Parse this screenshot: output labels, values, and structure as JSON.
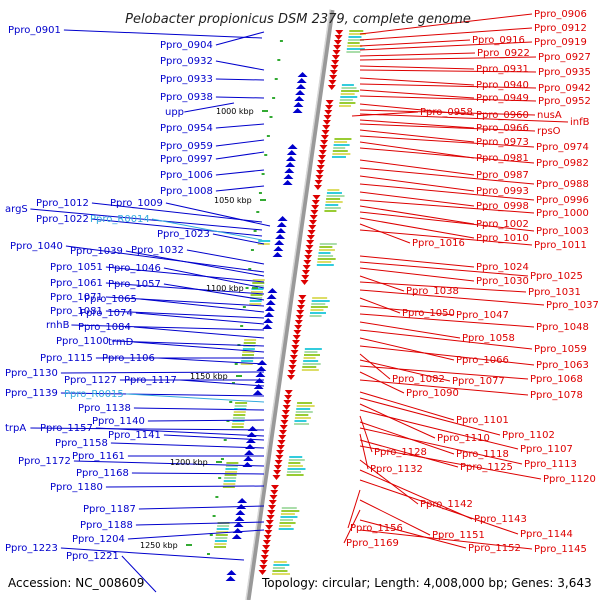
{
  "title": "Pelobacter propionicus DSM 2379, complete genome",
  "footer": {
    "accession": "Accession: NC_008609",
    "topology": "Topology: circular; Length: 4,008,000 bp; Genes: 3,643"
  },
  "colors": {
    "reverse_strand": "#0000cc",
    "forward_strand": "#dd0000",
    "rna": "#33aadd",
    "backbone": "#888888"
  },
  "scale_labels": [
    "1000 kbp",
    "1050 kbp",
    "1100 kbp",
    "1150 kbp",
    "1200 kbp",
    "1250 kbp"
  ],
  "left_labels": [
    {
      "text": "Ppro_0901",
      "kind": "gene"
    },
    {
      "text": "Ppro_0904",
      "kind": "gene"
    },
    {
      "text": "Ppro_0932",
      "kind": "gene"
    },
    {
      "text": "Ppro_0933",
      "kind": "gene"
    },
    {
      "text": "Ppro_0938",
      "kind": "gene"
    },
    {
      "text": "upp",
      "kind": "gene"
    },
    {
      "text": "Ppro_0954",
      "kind": "gene"
    },
    {
      "text": "Ppro_0959",
      "kind": "gene"
    },
    {
      "text": "Ppro_0997",
      "kind": "gene"
    },
    {
      "text": "Ppro_1006",
      "kind": "gene"
    },
    {
      "text": "Ppro_1008",
      "kind": "gene"
    },
    {
      "text": "Ppro_1012",
      "kind": "gene"
    },
    {
      "text": "Ppro_1009",
      "kind": "gene"
    },
    {
      "text": "argS",
      "kind": "gene"
    },
    {
      "text": "Ppro_1022",
      "kind": "gene"
    },
    {
      "text": "Ppro_R0014",
      "kind": "rna"
    },
    {
      "text": "Ppro_1023",
      "kind": "gene"
    },
    {
      "text": "Ppro_1032",
      "kind": "gene"
    },
    {
      "text": "Ppro_1040",
      "kind": "gene"
    },
    {
      "text": "Ppro_1039",
      "kind": "gene"
    },
    {
      "text": "Ppro_1051",
      "kind": "gene"
    },
    {
      "text": "Ppro_1046",
      "kind": "gene"
    },
    {
      "text": "Ppro_1061",
      "kind": "gene"
    },
    {
      "text": "Ppro_1057",
      "kind": "gene"
    },
    {
      "text": "Ppro_1071",
      "kind": "gene"
    },
    {
      "text": "Ppro_1065",
      "kind": "gene"
    },
    {
      "text": "Ppro_1081",
      "kind": "gene"
    },
    {
      "text": "Ppro_1074",
      "kind": "gene"
    },
    {
      "text": "rnhB",
      "kind": "gene"
    },
    {
      "text": "Ppro_1084",
      "kind": "gene"
    },
    {
      "text": "Ppro_1100",
      "kind": "gene"
    },
    {
      "text": "trmD",
      "kind": "gene"
    },
    {
      "text": "Ppro_1115",
      "kind": "gene"
    },
    {
      "text": "Ppro_1106",
      "kind": "gene"
    },
    {
      "text": "Ppro_1130",
      "kind": "gene"
    },
    {
      "text": "Ppro_1127",
      "kind": "gene"
    },
    {
      "text": "Ppro_1117",
      "kind": "gene"
    },
    {
      "text": "Ppro_1139",
      "kind": "gene"
    },
    {
      "text": "Ppro_R0015",
      "kind": "rna"
    },
    {
      "text": "Ppro_1138",
      "kind": "gene"
    },
    {
      "text": "Ppro_1140",
      "kind": "gene"
    },
    {
      "text": "trpA",
      "kind": "gene"
    },
    {
      "text": "Ppro_1157",
      "kind": "gene"
    },
    {
      "text": "Ppro_1141",
      "kind": "gene"
    },
    {
      "text": "Ppro_1158",
      "kind": "gene"
    },
    {
      "text": "Ppro_1161",
      "kind": "gene"
    },
    {
      "text": "Ppro_1172",
      "kind": "gene"
    },
    {
      "text": "Ppro_1168",
      "kind": "gene"
    },
    {
      "text": "Ppro_1180",
      "kind": "gene"
    },
    {
      "text": "Ppro_1187",
      "kind": "gene"
    },
    {
      "text": "Ppro_1188",
      "kind": "gene"
    },
    {
      "text": "Ppro_1204",
      "kind": "gene"
    },
    {
      "text": "Ppro_1223",
      "kind": "gene"
    },
    {
      "text": "Ppro_1221",
      "kind": "gene"
    }
  ],
  "right_labels": [
    {
      "text": "Ppro_0906"
    },
    {
      "text": "Ppro_0912"
    },
    {
      "text": "Ppro_0916"
    },
    {
      "text": "Ppro_0919"
    },
    {
      "text": "Ppro_0922"
    },
    {
      "text": "Ppro_0927"
    },
    {
      "text": "Ppro_0931"
    },
    {
      "text": "Ppro_0935"
    },
    {
      "text": "Ppro_0940"
    },
    {
      "text": "Ppro_0942"
    },
    {
      "text": "Ppro_0949"
    },
    {
      "text": "Ppro_0952"
    },
    {
      "text": "Ppro_0958"
    },
    {
      "text": "Ppro_0960"
    },
    {
      "text": "nusA"
    },
    {
      "text": "infB"
    },
    {
      "text": "Ppro_0966"
    },
    {
      "text": "rpsO"
    },
    {
      "text": "Ppro_0973"
    },
    {
      "text": "Ppro_0974"
    },
    {
      "text": "Ppro_0981"
    },
    {
      "text": "Ppro_0982"
    },
    {
      "text": "Ppro_0987"
    },
    {
      "text": "Ppro_0988"
    },
    {
      "text": "Ppro_0993"
    },
    {
      "text": "Ppro_0996"
    },
    {
      "text": "Ppro_0998"
    },
    {
      "text": "Ppro_1000"
    },
    {
      "text": "Ppro_1002"
    },
    {
      "text": "Ppro_1003"
    },
    {
      "text": "Ppro_1010"
    },
    {
      "text": "Ppro_1016"
    },
    {
      "text": "Ppro_1011"
    },
    {
      "text": "Ppro_1024"
    },
    {
      "text": "Ppro_1025"
    },
    {
      "text": "Ppro_1030"
    },
    {
      "text": "Ppro_1038"
    },
    {
      "text": "Ppro_1031"
    },
    {
      "text": "Ppro_1037"
    },
    {
      "text": "Ppro_1050"
    },
    {
      "text": "Ppro_1047"
    },
    {
      "text": "Ppro_1048"
    },
    {
      "text": "Ppro_1058"
    },
    {
      "text": "Ppro_1059"
    },
    {
      "text": "Ppro_1066"
    },
    {
      "text": "Ppro_1063"
    },
    {
      "text": "Ppro_1082"
    },
    {
      "text": "Ppro_1077"
    },
    {
      "text": "Ppro_1068"
    },
    {
      "text": "Ppro_1090"
    },
    {
      "text": "Ppro_1078"
    },
    {
      "text": "Ppro_1101"
    },
    {
      "text": "Ppro_1102"
    },
    {
      "text": "Ppro_1110"
    },
    {
      "text": "Ppro_1107"
    },
    {
      "text": "Ppro_1128"
    },
    {
      "text": "Ppro_1118"
    },
    {
      "text": "Ppro_1113"
    },
    {
      "text": "Ppro_1132"
    },
    {
      "text": "Ppro_1125"
    },
    {
      "text": "Ppro_1120"
    },
    {
      "text": "Ppro_1142"
    },
    {
      "text": "Ppro_1143"
    },
    {
      "text": "Ppro_1144"
    },
    {
      "text": "Ppro_1156"
    },
    {
      "text": "Ppro_1151"
    },
    {
      "text": "Ppro_1169"
    },
    {
      "text": "Ppro_1152"
    },
    {
      "text": "Ppro_1145"
    }
  ]
}
